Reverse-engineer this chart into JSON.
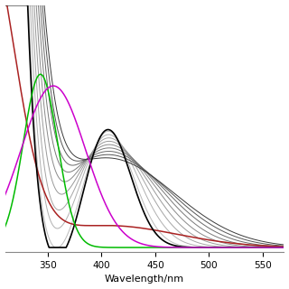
{
  "x_min": 310,
  "x_max": 570,
  "y_min": -0.02,
  "y_max": 1.05,
  "xlabel": "Wavelength/nm",
  "xlabel_fontsize": 8,
  "tick_fontsize": 7.5,
  "background_color": "#ffffff",
  "gray_shades": [
    "#bbbbbb",
    "#b0b0b0",
    "#a5a5a5",
    "#999999",
    "#8a8a8a",
    "#7a7a7a",
    "#6a6a6a",
    "#555555",
    "#3a3a3a"
  ],
  "red_color": "#aa2222",
  "green_color": "#00bb00",
  "magenta_color": "#cc00cc",
  "figsize": [
    3.2,
    3.2
  ],
  "dpi": 100
}
